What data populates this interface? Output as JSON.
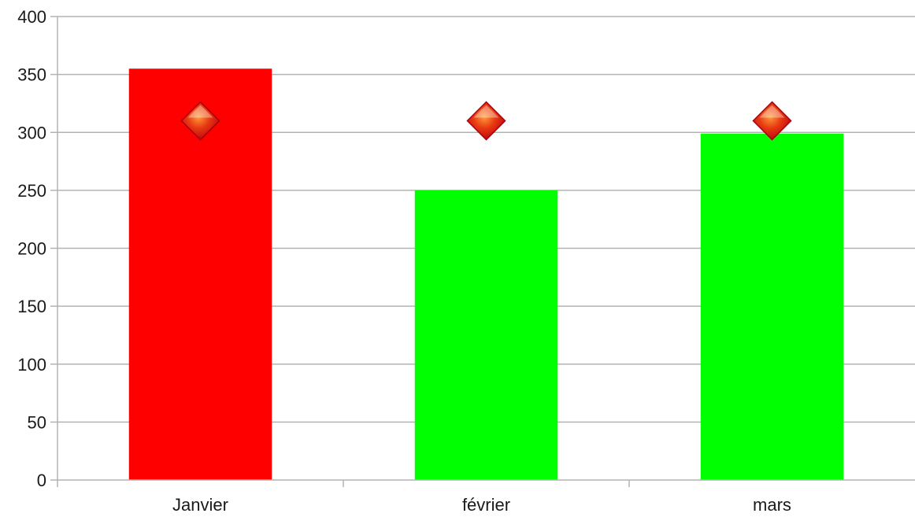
{
  "chart_data": {
    "type": "bar",
    "categories": [
      "Janvier",
      "février",
      "mars"
    ],
    "series": [
      {
        "type": "bar",
        "values": [
          355,
          250,
          299
        ],
        "colors": [
          "#ff0000",
          "#00ff00",
          "#00ff00"
        ]
      },
      {
        "type": "marker",
        "marker": "diamond",
        "values": [
          310,
          310,
          310
        ],
        "color": "#e8341c"
      }
    ],
    "yticks": [
      "0",
      "50",
      "100",
      "150",
      "200",
      "250",
      "300",
      "350",
      "400"
    ],
    "ylim": [
      0,
      400
    ],
    "grid": true,
    "title": "",
    "xlabel": "",
    "ylabel": ""
  }
}
